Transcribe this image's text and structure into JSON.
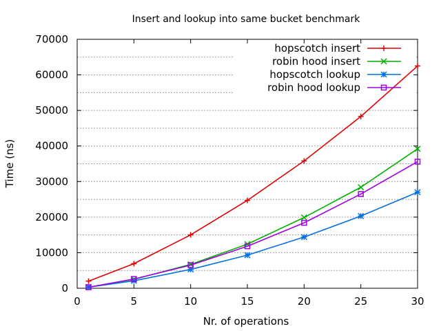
{
  "chart_data": {
    "type": "line",
    "title": "Insert and lookup into same bucket benchmark",
    "xlabel": "Nr. of operations",
    "ylabel": "Time (ns)",
    "xlim": [
      0,
      30
    ],
    "ylim": [
      0,
      70000
    ],
    "xticks": [
      0,
      5,
      10,
      15,
      20,
      25,
      30
    ],
    "yticks": [
      0,
      10000,
      20000,
      30000,
      40000,
      50000,
      60000,
      70000
    ],
    "x": [
      1,
      5,
      10,
      15,
      20,
      25,
      30
    ],
    "grid": "horizontal dotted minor lines",
    "legend_position": "top-right",
    "series": [
      {
        "name": "hopscotch insert",
        "color": "#e00000",
        "marker": "plus",
        "values": [
          2000,
          6900,
          15000,
          24700,
          35800,
          48300,
          62500
        ]
      },
      {
        "name": "robin hood insert",
        "color": "#00b000",
        "marker": "cross",
        "values": [
          300,
          2500,
          6700,
          12400,
          19900,
          28400,
          39200
        ]
      },
      {
        "name": "hopscotch lookup",
        "color": "#0070e0",
        "marker": "star",
        "values": [
          300,
          2100,
          5300,
          9300,
          14400,
          20300,
          27000
        ]
      },
      {
        "name": "robin hood lookup",
        "color": "#a000e0",
        "marker": "square",
        "values": [
          300,
          2600,
          6500,
          11800,
          18400,
          26500,
          35600
        ]
      }
    ]
  }
}
